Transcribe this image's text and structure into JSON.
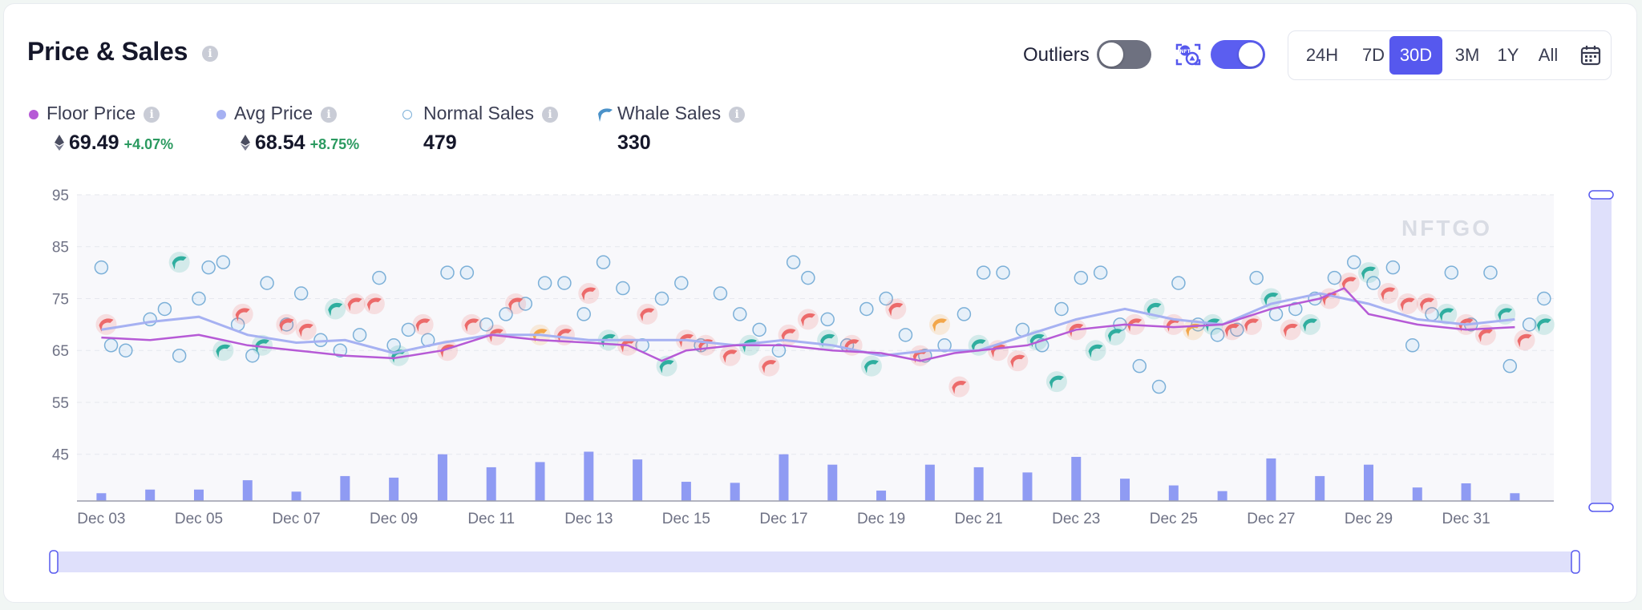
{
  "header": {
    "title": "Price & Sales",
    "outliers_label": "Outliers"
  },
  "time_ranges": [
    {
      "label": "24H",
      "active": false
    },
    {
      "label": "7D",
      "active": false
    },
    {
      "label": "30D",
      "active": true
    },
    {
      "label": "3M",
      "active": false
    },
    {
      "label": "1Y",
      "active": false
    },
    {
      "label": "All",
      "active": false
    }
  ],
  "legend": {
    "floor_price": {
      "label": "Floor Price",
      "value": "69.49",
      "change": "+4.07%",
      "color": "#b65ad6"
    },
    "avg_price": {
      "label": "Avg Price",
      "value": "68.54",
      "change": "+8.75%",
      "color": "#a6b1f2"
    },
    "normal_sales": {
      "label": "Normal Sales",
      "value": "479"
    },
    "whale_sales": {
      "label": "Whale Sales",
      "value": "330"
    }
  },
  "colors": {
    "accent": "#5658ee",
    "floor_line": "#b65ad6",
    "avg_line": "#a6b1f2",
    "normal_dot": "#7cb0d8",
    "whale_red": "#ec6a6a",
    "whale_teal": "#2fae9f",
    "whale_orange": "#f2a64a",
    "volume_bar": "#8f9bf3",
    "change_positive": "#2b9a60"
  },
  "watermark": "NFTGO",
  "chart_data": {
    "type": "scatter",
    "x_ticks": [
      "Dec 03",
      "Dec 05",
      "Dec 07",
      "Dec 09",
      "Dec 11",
      "Dec 13",
      "Dec 15",
      "Dec 17",
      "Dec 19",
      "Dec 21",
      "Dec 23",
      "Dec 25",
      "Dec 27",
      "Dec 29",
      "Dec 31"
    ],
    "y_ticks": [
      45,
      55,
      65,
      75,
      85,
      95
    ],
    "ylim": [
      36,
      95
    ],
    "xlim": [
      2.5,
      32.8
    ],
    "grid": true,
    "floor_price": {
      "name": "Floor Price",
      "x": [
        3,
        4,
        5,
        6,
        7,
        8,
        9,
        10,
        11,
        12,
        13,
        13.8,
        14.5,
        15,
        16,
        17,
        18,
        19,
        19.8,
        20.5,
        21,
        22,
        23,
        24,
        25,
        26,
        27,
        28,
        28.5,
        29,
        30,
        31,
        32
      ],
      "y": [
        67.5,
        67,
        68,
        66,
        65,
        64,
        63.5,
        65,
        68,
        67,
        66.5,
        66,
        63,
        65,
        66,
        66,
        65,
        64.5,
        63,
        64.5,
        65,
        66,
        69,
        70,
        69.5,
        70,
        73,
        75,
        77,
        72,
        70,
        69,
        69.5
      ]
    },
    "avg_price": {
      "name": "Avg Price",
      "x": [
        3,
        4,
        5,
        6,
        7,
        8,
        9,
        10,
        11,
        12,
        13,
        14,
        15,
        16,
        17,
        18,
        19,
        20,
        21,
        22,
        23,
        24,
        25,
        26,
        27,
        28,
        29,
        30,
        31,
        32
      ],
      "y": [
        69,
        70.5,
        71.5,
        68,
        66.5,
        67,
        64.5,
        66.5,
        68,
        68,
        67,
        67,
        67,
        66,
        67,
        66,
        64,
        65,
        65,
        68,
        71,
        73,
        71,
        70,
        74,
        76,
        74,
        71,
        70,
        71
      ]
    },
    "volume_bars": {
      "x": [
        3,
        4,
        5,
        6,
        7,
        8,
        9,
        10,
        11,
        12,
        13,
        14,
        15,
        16,
        17,
        18,
        19,
        20,
        21,
        22,
        23,
        24,
        25,
        26,
        27,
        28,
        29,
        30,
        31,
        32
      ],
      "y": [
        1.5,
        2.2,
        2.2,
        4,
        1.8,
        4.8,
        4.5,
        9,
        6.5,
        7.5,
        9.5,
        8,
        3.7,
        3.5,
        9,
        7,
        2,
        7,
        6.5,
        5.5,
        8.5,
        4.3,
        3,
        1.9,
        8.2,
        4.8,
        7,
        2.6,
        3.4,
        1.5
      ]
    },
    "normal_sales": {
      "name": "Normal Sales",
      "x": [
        3,
        3.2,
        3.5,
        4,
        4.3,
        4.6,
        5,
        5.2,
        5.5,
        5.8,
        6.1,
        6.4,
        6.8,
        7.1,
        7.5,
        7.9,
        8.3,
        8.7,
        9,
        9.3,
        9.7,
        10.1,
        10.5,
        10.9,
        11.3,
        11.7,
        12.1,
        12.5,
        12.9,
        13.3,
        13.7,
        14.1,
        14.5,
        14.9,
        15.3,
        15.7,
        16.1,
        16.5,
        16.9,
        17.2,
        17.5,
        17.9,
        18.3,
        18.7,
        19.1,
        19.5,
        19.9,
        20.3,
        20.7,
        21.1,
        21.5,
        21.9,
        22.3,
        22.7,
        23.1,
        23.5,
        23.9,
        24.3,
        24.7,
        25.1,
        25.5,
        25.9,
        26.3,
        26.7,
        27.1,
        27.5,
        27.9,
        28.3,
        28.7,
        29.1,
        29.5,
        29.9,
        30.3,
        30.7,
        31.1,
        31.5,
        31.9,
        32.3,
        32.6
      ],
      "y": [
        81,
        66,
        65,
        71,
        73,
        64,
        75,
        81,
        82,
        70,
        64,
        78,
        70,
        76,
        67,
        65,
        68,
        79,
        66,
        69,
        67,
        80,
        80,
        70,
        72,
        74,
        78,
        78,
        72,
        82,
        77,
        66,
        75,
        78,
        66,
        76,
        72,
        69,
        65,
        82,
        79,
        71,
        66,
        73,
        75,
        68,
        64,
        66,
        72,
        80,
        80,
        69,
        66,
        73,
        79,
        80,
        70,
        62,
        58,
        78,
        70,
        68,
        69,
        79,
        72,
        73,
        75,
        79,
        82,
        78,
        81,
        66,
        72,
        80,
        70,
        80,
        62,
        70,
        75
      ]
    },
    "whale_sales": {
      "name": "Whale Sales",
      "x": [
        3.1,
        4.6,
        5.5,
        5.9,
        6.3,
        6.8,
        7.2,
        7.8,
        8.2,
        8.6,
        9.1,
        9.6,
        10.1,
        10.6,
        11.1,
        11.5,
        12,
        12.5,
        13,
        13.4,
        13.8,
        14.2,
        14.6,
        15,
        15.4,
        15.9,
        16.3,
        16.7,
        17.1,
        17.5,
        17.9,
        18.4,
        18.8,
        19.3,
        19.8,
        20.2,
        20.6,
        21,
        21.4,
        21.8,
        22.2,
        22.6,
        23,
        23.4,
        23.8,
        24.2,
        24.6,
        25,
        25.4,
        25.8,
        26.2,
        26.6,
        27,
        27.4,
        27.8,
        28.2,
        28.6,
        29,
        29.4,
        29.8,
        30.2,
        30.6,
        31,
        31.4,
        31.8,
        32.2,
        32.6
      ],
      "y": [
        70,
        82,
        65,
        72,
        66,
        70,
        69,
        73,
        74,
        74,
        64,
        70,
        65,
        70,
        68,
        74,
        68,
        68,
        76,
        67,
        66,
        72,
        62,
        67,
        66,
        64,
        66,
        62,
        68,
        71,
        67,
        66,
        62,
        73,
        64,
        70,
        58,
        66,
        65,
        63,
        67,
        59,
        69,
        65,
        68,
        70,
        73,
        70,
        69,
        70,
        69,
        70,
        75,
        69,
        70,
        75,
        78,
        80,
        76,
        74,
        74,
        72,
        70,
        68,
        72,
        67,
        70
      ],
      "colors": [
        "red",
        "teal",
        "teal",
        "red",
        "teal",
        "red",
        "red",
        "teal",
        "red",
        "red",
        "teal",
        "red",
        "red",
        "red",
        "red",
        "red",
        "orange",
        "red",
        "red",
        "teal",
        "red",
        "red",
        "teal",
        "red",
        "red",
        "red",
        "teal",
        "red",
        "red",
        "red",
        "teal",
        "red",
        "teal",
        "red",
        "red",
        "orange",
        "red",
        "teal",
        "red",
        "red",
        "teal",
        "teal",
        "red",
        "teal",
        "teal",
        "red",
        "teal",
        "red",
        "orange",
        "teal",
        "red",
        "red",
        "teal",
        "red",
        "teal",
        "red",
        "red",
        "teal",
        "red",
        "red",
        "red",
        "teal",
        "red",
        "red",
        "teal",
        "red",
        "teal"
      ]
    }
  }
}
